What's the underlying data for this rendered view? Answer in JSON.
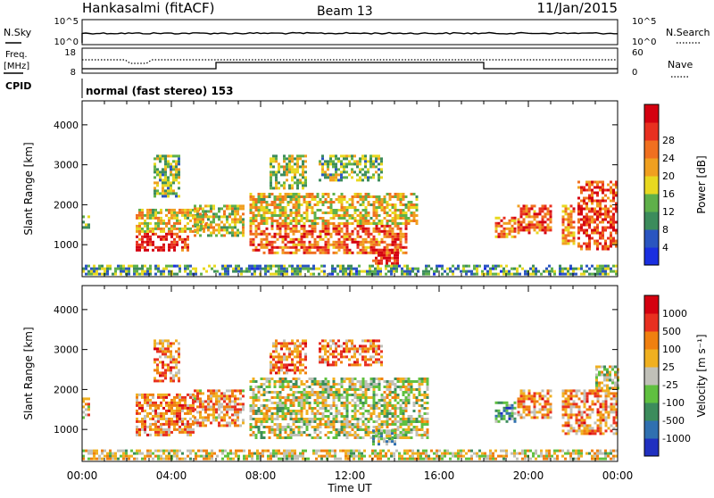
{
  "header": {
    "station": "Hankasalmi (fitACF)",
    "beam": "Beam 13",
    "date": "11/Jan/2015"
  },
  "top_panels": {
    "nsky_label": "N.Sky",
    "nsky_ticks": [
      "10^5",
      "10^0"
    ],
    "nsearch_label": "N.Search",
    "nsearch_ticks": [
      "10^5",
      "10^0"
    ],
    "freq_label_line1": "Freq.",
    "freq_label_line2": "[MHz]",
    "freq_ticks": [
      "18",
      "8"
    ],
    "nave_label": "Nave",
    "nave_ticks": [
      "60",
      "0"
    ],
    "cpid_label": "CPID",
    "cpid_text": "normal (fast stereo) 153"
  },
  "x_axis": {
    "label": "Time UT",
    "ticks": [
      "00:00",
      "04:00",
      "08:00",
      "12:00",
      "16:00",
      "20:00",
      "00:00"
    ]
  },
  "chart_data": [
    {
      "type": "heatmap",
      "title": "Power",
      "ylabel": "Slant Range [km]",
      "yticks": [
        "1000",
        "2000",
        "3000",
        "4000"
      ],
      "ylim": [
        200,
        4600
      ],
      "xlim_hours": [
        0,
        24
      ],
      "colorbar_label": "Power [dB]",
      "colorbar_ticks": [
        "4",
        "8",
        "12",
        "16",
        "20",
        "24",
        "28"
      ],
      "colorbar_colors": [
        "#1a2fe0",
        "#2a55c0",
        "#3c8c5c",
        "#5fb04a",
        "#e8d820",
        "#f0a020",
        "#f07020",
        "#e83020",
        "#d40010"
      ],
      "echo_regions": [
        {
          "t0": 0.0,
          "t1": 0.3,
          "r0": 1400,
          "r1": 1800,
          "level": 0.35
        },
        {
          "t0": 2.4,
          "t1": 4.8,
          "r0": 850,
          "r1": 1300,
          "level": 0.92
        },
        {
          "t0": 2.4,
          "t1": 5.6,
          "r0": 1300,
          "r1": 1900,
          "level": 0.55
        },
        {
          "t0": 3.2,
          "t1": 4.4,
          "r0": 2200,
          "r1": 3250,
          "level": 0.4
        },
        {
          "t0": 5.0,
          "t1": 7.2,
          "r0": 1200,
          "r1": 2000,
          "level": 0.5
        },
        {
          "t0": 7.5,
          "t1": 14.5,
          "r0": 800,
          "r1": 1500,
          "level": 0.78
        },
        {
          "t0": 7.5,
          "t1": 15.0,
          "r0": 1500,
          "r1": 2300,
          "level": 0.55
        },
        {
          "t0": 8.4,
          "t1": 10.0,
          "r0": 2400,
          "r1": 3250,
          "level": 0.45
        },
        {
          "t0": 10.6,
          "t1": 13.4,
          "r0": 2600,
          "r1": 3250,
          "level": 0.4
        },
        {
          "t0": 13.0,
          "t1": 14.2,
          "r0": 500,
          "r1": 900,
          "level": 0.95
        },
        {
          "t0": 18.5,
          "t1": 19.4,
          "r0": 1200,
          "r1": 1700,
          "level": 0.75
        },
        {
          "t0": 19.5,
          "t1": 21.0,
          "r0": 1300,
          "r1": 2000,
          "level": 0.8
        },
        {
          "t0": 21.5,
          "t1": 22.0,
          "r0": 1000,
          "r1": 2000,
          "level": 0.7
        },
        {
          "t0": 22.2,
          "t1": 24.0,
          "r0": 900,
          "r1": 2600,
          "level": 0.85
        },
        {
          "t0": 0.0,
          "t1": 24.0,
          "r0": 250,
          "r1": 500,
          "level": 0.3
        }
      ]
    },
    {
      "type": "heatmap",
      "title": "Velocity",
      "ylabel": "Slant Range [km]",
      "yticks": [
        "1000",
        "2000",
        "3000",
        "4000"
      ],
      "ylim": [
        200,
        4600
      ],
      "xlim_hours": [
        0,
        24
      ],
      "colorbar_label": "Velocity [m s⁻¹]",
      "colorbar_ticks": [
        "1000",
        "500",
        "100",
        "25",
        "-25",
        "-100",
        "-500",
        "-1000"
      ],
      "colorbar_colors": [
        "#2030c0",
        "#3070b0",
        "#3c8c5c",
        "#60c040",
        "#c0c0b8",
        "#f0b020",
        "#f08010",
        "#e83020",
        "#d40010"
      ],
      "echo_regions": [
        {
          "t0": 0.0,
          "t1": 0.3,
          "r0": 1300,
          "r1": 1800,
          "level": 0.65
        },
        {
          "t0": 2.4,
          "t1": 5.0,
          "r0": 850,
          "r1": 1900,
          "level": 0.72
        },
        {
          "t0": 3.2,
          "t1": 4.4,
          "r0": 2200,
          "r1": 3250,
          "level": 0.7
        },
        {
          "t0": 5.0,
          "t1": 7.2,
          "r0": 1100,
          "r1": 2000,
          "level": 0.68
        },
        {
          "t0": 7.5,
          "t1": 15.5,
          "r0": 800,
          "r1": 2300,
          "level": 0.5
        },
        {
          "t0": 8.4,
          "t1": 10.0,
          "r0": 2400,
          "r1": 3250,
          "level": 0.75
        },
        {
          "t0": 10.6,
          "t1": 13.4,
          "r0": 2600,
          "r1": 3250,
          "level": 0.75
        },
        {
          "t0": 13.0,
          "t1": 14.0,
          "r0": 650,
          "r1": 1000,
          "level": 0.35
        },
        {
          "t0": 18.5,
          "t1": 19.4,
          "r0": 1200,
          "r1": 1700,
          "level": 0.28
        },
        {
          "t0": 19.5,
          "t1": 21.0,
          "r0": 1300,
          "r1": 2000,
          "level": 0.7
        },
        {
          "t0": 21.5,
          "t1": 24.0,
          "r0": 900,
          "r1": 2000,
          "level": 0.7
        },
        {
          "t0": 23.0,
          "t1": 24.0,
          "r0": 2000,
          "r1": 2600,
          "level": 0.5
        },
        {
          "t0": 0.0,
          "t1": 24.0,
          "r0": 250,
          "r1": 500,
          "level": 0.55
        }
      ]
    }
  ]
}
